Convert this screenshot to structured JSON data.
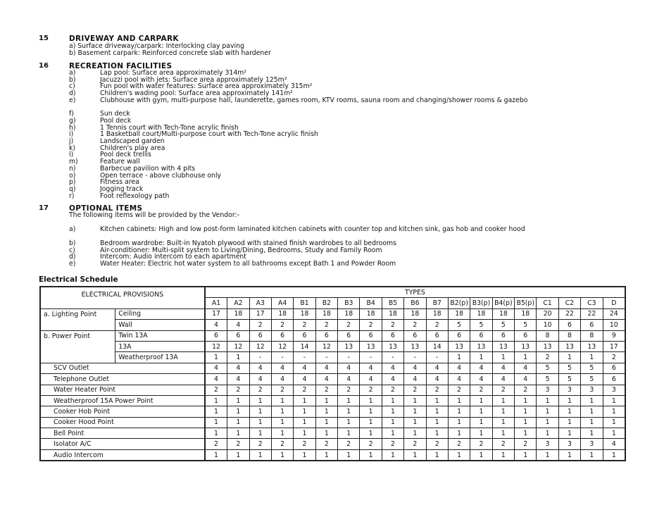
{
  "sections": [
    {
      "num": "15",
      "title": "DRIVEWAY AND CARPARK",
      "lines": [
        "a) Surface driveway/carpark: Interlocking clay paving",
        "b) Basement carpark: Reinforced concrete slab with hardener"
      ]
    },
    {
      "num": "16",
      "title": "RECREATION FACILITIES",
      "items": [
        {
          "l": "a)",
          "t": "Lap pool: Surface area approximately 314m²"
        },
        {
          "l": "b)",
          "t": "Jacuzzi pool with jets: Surface area approximately 125m²"
        },
        {
          "l": "c)",
          "t": "Fun pool with water features: Surface area approximately 315m²"
        },
        {
          "l": "d)",
          "t": "Children's wading pool: Surface area approximately 141m²"
        },
        {
          "l": "e)",
          "t": "Clubhouse with gym, multi-purpose hall, launderette, games room, KTV rooms, sauna room and changing/shower rooms & gazebo"
        },
        {
          "l": "f)",
          "t": "Sun deck"
        },
        {
          "l": "g)",
          "t": "Pool deck"
        },
        {
          "l": "h)",
          "t": "1 Tennis court with Tech-Tone acrylic finish"
        },
        {
          "l": "i)",
          "t": "1 Basketball court/Multi-purpose court with Tech-Tone acrylic finish"
        },
        {
          "l": "j)",
          "t": "Landscaped garden"
        },
        {
          "l": "k)",
          "t": "Children's play area"
        },
        {
          "l": "l)",
          "t": "Pool deck trellis"
        },
        {
          "l": "m)",
          "t": "Feature wall"
        },
        {
          "l": "n)",
          "t": "Barbecue pavilion with 4 pits"
        },
        {
          "l": "o)",
          "t": "Open terrace - above clubhouse only"
        },
        {
          "l": "p)",
          "t": "Fitness area"
        },
        {
          "l": "q)",
          "t": "Jogging track"
        },
        {
          "l": "r)",
          "t": "Foot reflexology path"
        }
      ]
    },
    {
      "num": "17",
      "title": "OPTIONAL ITEMS",
      "intro": "The following items will be provided by the Vendor:-",
      "items": [
        {
          "l": "a)",
          "t": "Kitchen cabinets: High and low post-form laminated kitchen cabinets with counter top and kitchen sink, gas hob and cooker hood"
        },
        {
          "l": "b)",
          "t": "Bedroom wardrobe: Built-in Nyatoh plywood with stained finish wardrobes to all bedrooms"
        },
        {
          "l": "c)",
          "t": "Air-conditioner: Multi-split system to Living/Dining, Bedrooms, Study and Family Room"
        },
        {
          "l": "d)",
          "t": "Intercom: Audio intercom to each apartment"
        },
        {
          "l": "e)",
          "t": "Water Heater: Electric hot water system to all bathrooms except Bath 1 and Powder Room"
        }
      ]
    }
  ],
  "schedule": {
    "title": "Electrical Schedule",
    "provisions_header": "ELECTRICAL PROVISIONS",
    "types_header": "TYPES",
    "types": [
      "A1",
      "A2",
      "A3",
      "A4",
      "B1",
      "B2",
      "B3",
      "B4",
      "B5",
      "B6",
      "B7",
      "B2(p)",
      "B3(p)",
      "B4(p)",
      "B5(p)",
      "C1",
      "C2",
      "C3",
      "D"
    ],
    "rows": [
      {
        "group": "a. Lighting Point",
        "span": 2,
        "label": "Ceiling",
        "values": [
          "17",
          "18",
          "17",
          "18",
          "18",
          "18",
          "18",
          "18",
          "18",
          "18",
          "18",
          "18",
          "18",
          "18",
          "18",
          "20",
          "22",
          "22",
          "24"
        ]
      },
      {
        "label": "Wall",
        "values": [
          "4",
          "4",
          "2",
          "2",
          "2",
          "2",
          "2",
          "2",
          "2",
          "2",
          "2",
          "5",
          "5",
          "5",
          "5",
          "10",
          "6",
          "6",
          "10"
        ]
      },
      {
        "group": "b. Power Point",
        "span": 3,
        "label": "Twin 13A",
        "values": [
          "6",
          "6",
          "6",
          "6",
          "6",
          "6",
          "6",
          "6",
          "6",
          "6",
          "6",
          "6",
          "6",
          "6",
          "6",
          "8",
          "8",
          "8",
          "9"
        ]
      },
      {
        "label": "13A",
        "values": [
          "12",
          "12",
          "12",
          "12",
          "14",
          "12",
          "13",
          "13",
          "13",
          "13",
          "14",
          "13",
          "13",
          "13",
          "13",
          "13",
          "13",
          "13",
          "17"
        ]
      },
      {
        "label": "Weatherproof 13A",
        "values": [
          "1",
          "1",
          "-",
          "-",
          "-",
          "-",
          "-",
          "-",
          "-",
          "-",
          "-",
          "1",
          "1",
          "1",
          "1",
          "2",
          "1",
          "1",
          "2"
        ]
      },
      {
        "full": "SCV Outlet",
        "values": [
          "4",
          "4",
          "4",
          "4",
          "4",
          "4",
          "4",
          "4",
          "4",
          "4",
          "4",
          "4",
          "4",
          "4",
          "4",
          "5",
          "5",
          "5",
          "6"
        ]
      },
      {
        "full": "Telephone Outlet",
        "values": [
          "4",
          "4",
          "4",
          "4",
          "4",
          "4",
          "4",
          "4",
          "4",
          "4",
          "4",
          "4",
          "4",
          "4",
          "4",
          "5",
          "5",
          "5",
          "6"
        ]
      },
      {
        "full": "Water Heater Point",
        "values": [
          "2",
          "2",
          "2",
          "2",
          "2",
          "2",
          "2",
          "2",
          "2",
          "2",
          "2",
          "2",
          "2",
          "2",
          "2",
          "3",
          "3",
          "3",
          "3"
        ]
      },
      {
        "full": "Weatherproof 15A Power Point",
        "values": [
          "1",
          "1",
          "1",
          "1",
          "1",
          "1",
          "1",
          "1",
          "1",
          "1",
          "1",
          "1",
          "1",
          "1",
          "1",
          "1",
          "1",
          "1",
          "1"
        ]
      },
      {
        "full": "Cooker Hob Point",
        "values": [
          "1",
          "1",
          "1",
          "1",
          "1",
          "1",
          "1",
          "1",
          "1",
          "1",
          "1",
          "1",
          "1",
          "1",
          "1",
          "1",
          "1",
          "1",
          "1"
        ]
      },
      {
        "full": "Cooker Hood Point",
        "values": [
          "1",
          "1",
          "1",
          "1",
          "1",
          "1",
          "1",
          "1",
          "1",
          "1",
          "1",
          "1",
          "1",
          "1",
          "1",
          "1",
          "1",
          "1",
          "1"
        ]
      },
      {
        "full": "Bell Point",
        "values": [
          "1",
          "1",
          "1",
          "1",
          "1",
          "1",
          "1",
          "1",
          "1",
          "1",
          "1",
          "1",
          "1",
          "1",
          "1",
          "1",
          "1",
          "1",
          "1"
        ]
      },
      {
        "full": "Isolator A/C",
        "values": [
          "2",
          "2",
          "2",
          "2",
          "2",
          "2",
          "2",
          "2",
          "2",
          "2",
          "2",
          "2",
          "2",
          "2",
          "2",
          "3",
          "3",
          "3",
          "4"
        ]
      },
      {
        "full": "Audio Intercom",
        "values": [
          "1",
          "1",
          "1",
          "1",
          "1",
          "1",
          "1",
          "1",
          "1",
          "1",
          "1",
          "1",
          "1",
          "1",
          "1",
          "1",
          "1",
          "1",
          "1"
        ]
      }
    ]
  }
}
